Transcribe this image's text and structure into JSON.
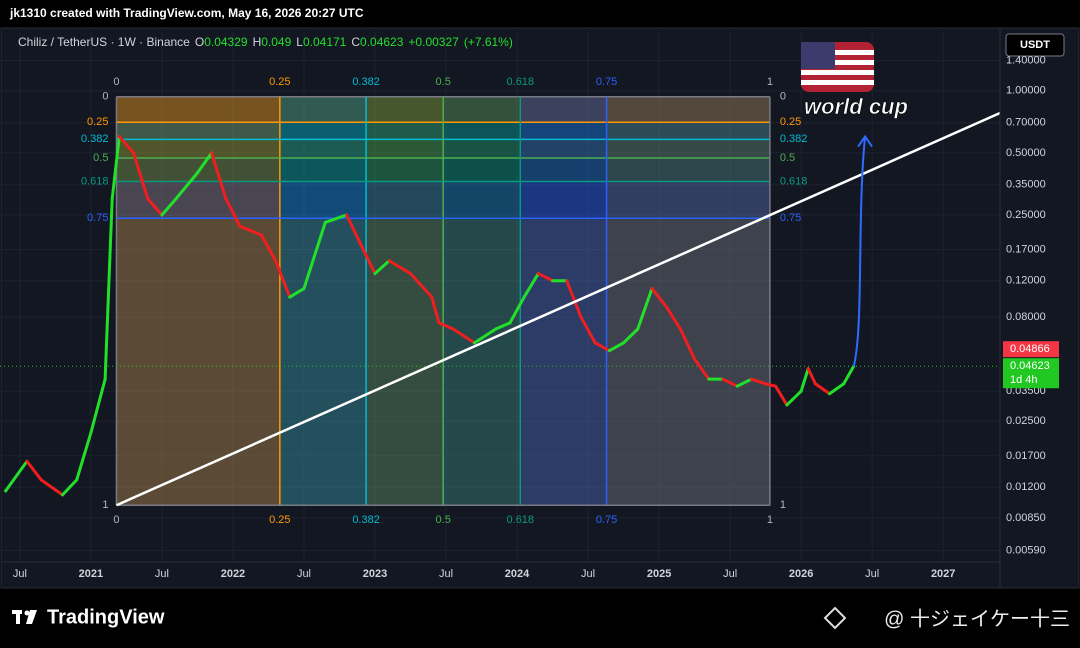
{
  "header": "jk1310 created with TradingView.com, May 16, 2026 20:27 UTC",
  "chart_data": {
    "type": "line",
    "title": "Chiliz / TetherUS · 1W · Binance",
    "quote": [
      {
        "label": "O",
        "value": 0.04329
      },
      {
        "label": "H",
        "value": 0.049
      },
      {
        "label": "L",
        "value": 0.04171
      },
      {
        "label": "C",
        "value": 0.04623
      }
    ],
    "change": {
      "value": 0.00327,
      "label": "+0.00327"
    },
    "change_percent": {
      "value": 7.61,
      "label": "(+7.61%)"
    },
    "currency": "USDT",
    "log_scale": true,
    "up_color": "#22e02a",
    "down_color": "#f01e1e",
    "x": [
      2020.4,
      2020.55,
      2020.65,
      2020.8,
      2020.9,
      2021.0,
      2021.1,
      2021.15,
      2021.2,
      2021.3,
      2021.4,
      2021.5,
      2021.6,
      2021.75,
      2021.85,
      2021.95,
      2022.05,
      2022.2,
      2022.3,
      2022.4,
      2022.5,
      2022.65,
      2022.8,
      2022.9,
      2023.0,
      2023.1,
      2023.25,
      2023.4,
      2023.45,
      2023.55,
      2023.7,
      2023.85,
      2023.95,
      2024.05,
      2024.15,
      2024.25,
      2024.35,
      2024.45,
      2024.55,
      2024.65,
      2024.75,
      2024.85,
      2024.95,
      2025.05,
      2025.15,
      2025.25,
      2025.35,
      2025.45,
      2025.55,
      2025.65,
      2025.75,
      2025.82,
      2025.9,
      2026.0,
      2026.05,
      2026.1,
      2026.2,
      2026.3,
      2026.37
    ],
    "values": [
      0.0115,
      0.016,
      0.013,
      0.011,
      0.013,
      0.022,
      0.04,
      0.3,
      0.6,
      0.5,
      0.3,
      0.25,
      0.3,
      0.4,
      0.5,
      0.3,
      0.22,
      0.2,
      0.15,
      0.1,
      0.11,
      0.23,
      0.25,
      0.18,
      0.13,
      0.15,
      0.13,
      0.1,
      0.075,
      0.07,
      0.06,
      0.07,
      0.075,
      0.1,
      0.13,
      0.12,
      0.12,
      0.08,
      0.06,
      0.055,
      0.06,
      0.07,
      0.11,
      0.09,
      0.07,
      0.05,
      0.04,
      0.04,
      0.037,
      0.04,
      0.038,
      0.037,
      0.03,
      0.035,
      0.045,
      0.038,
      0.034,
      0.038,
      0.04623
    ],
    "xlim": [
      2020.36,
      2027.4
    ],
    "ylim": [
      0.0052,
      1.97
    ],
    "xticks": [
      {
        "value": 2020.5,
        "label": "Jul"
      },
      {
        "value": 2021,
        "label": "2021"
      },
      {
        "value": 2021.5,
        "label": "Jul"
      },
      {
        "value": 2022,
        "label": "2022"
      },
      {
        "value": 2022.5,
        "label": "Jul"
      },
      {
        "value": 2023,
        "label": "2023"
      },
      {
        "value": 2023.5,
        "label": "Jul"
      },
      {
        "value": 2024,
        "label": "2024"
      },
      {
        "value": 2024.5,
        "label": "Jul"
      },
      {
        "value": 2025,
        "label": "2025"
      },
      {
        "value": 2025.5,
        "label": "Jul"
      },
      {
        "value": 2026,
        "label": "2026"
      },
      {
        "value": 2026.5,
        "label": "Jul"
      },
      {
        "value": 2027,
        "label": "2027"
      }
    ],
    "yticks": [
      {
        "value": 1.4,
        "label": "1.40000"
      },
      {
        "value": 1,
        "label": "1.00000"
      },
      {
        "value": 0.7,
        "label": "0.70000"
      },
      {
        "value": 0.5,
        "label": "0.50000"
      },
      {
        "value": 0.35,
        "label": "0.35000"
      },
      {
        "value": 0.25,
        "label": "0.25000"
      },
      {
        "value": 0.17,
        "label": "0.17000"
      },
      {
        "value": 0.12,
        "label": "0.12000"
      },
      {
        "value": 0.08,
        "label": "0.08000"
      },
      {
        "value": 0.035,
        "label": "0.03500"
      },
      {
        "value": 0.025,
        "label": "0.02500"
      },
      {
        "value": 0.017,
        "label": "0.01700"
      },
      {
        "value": 0.012,
        "label": "0.01200"
      },
      {
        "value": 0.0085,
        "label": "0.00850"
      },
      {
        "value": 0.0059,
        "label": "0.00590"
      }
    ],
    "price_labels": [
      {
        "value": 0.04866,
        "label": "0.04866",
        "color": "#f23645"
      },
      {
        "value": 0.04623,
        "label": "0.04623",
        "countdown": "1d 4h",
        "color": "#22c822"
      }
    ],
    "fib": {
      "start": {
        "x": 2021.18,
        "price": 0.935
      },
      "end": {
        "x": 2025.78,
        "price": 0.0098
      },
      "levels": [
        0,
        0.25,
        0.382,
        0.5,
        0.618,
        0.75,
        1
      ],
      "level_colors": [
        "#787b86",
        "#ff9800",
        "#00bcd4",
        "#4caf50",
        "#089981",
        "#2962ff",
        "#787b86"
      ],
      "zone_colors": [
        "#f7a21b",
        "#00bcd4",
        "#4caf50",
        "#089981",
        "#2962ff",
        "#787b86"
      ]
    },
    "trendline": {
      "x": [
        2021.18,
        2027.4
      ],
      "y": [
        0.0098,
        0.78
      ],
      "color": "#ffffff"
    },
    "arrow": {
      "x": [
        2026.37,
        2026.45
      ],
      "y": [
        0.046,
        0.6
      ],
      "color": "#2f6bff"
    },
    "annotation": "world cup"
  },
  "footer": {
    "brand": "TradingView",
    "author": "@ 十ジェイケー十三"
  }
}
